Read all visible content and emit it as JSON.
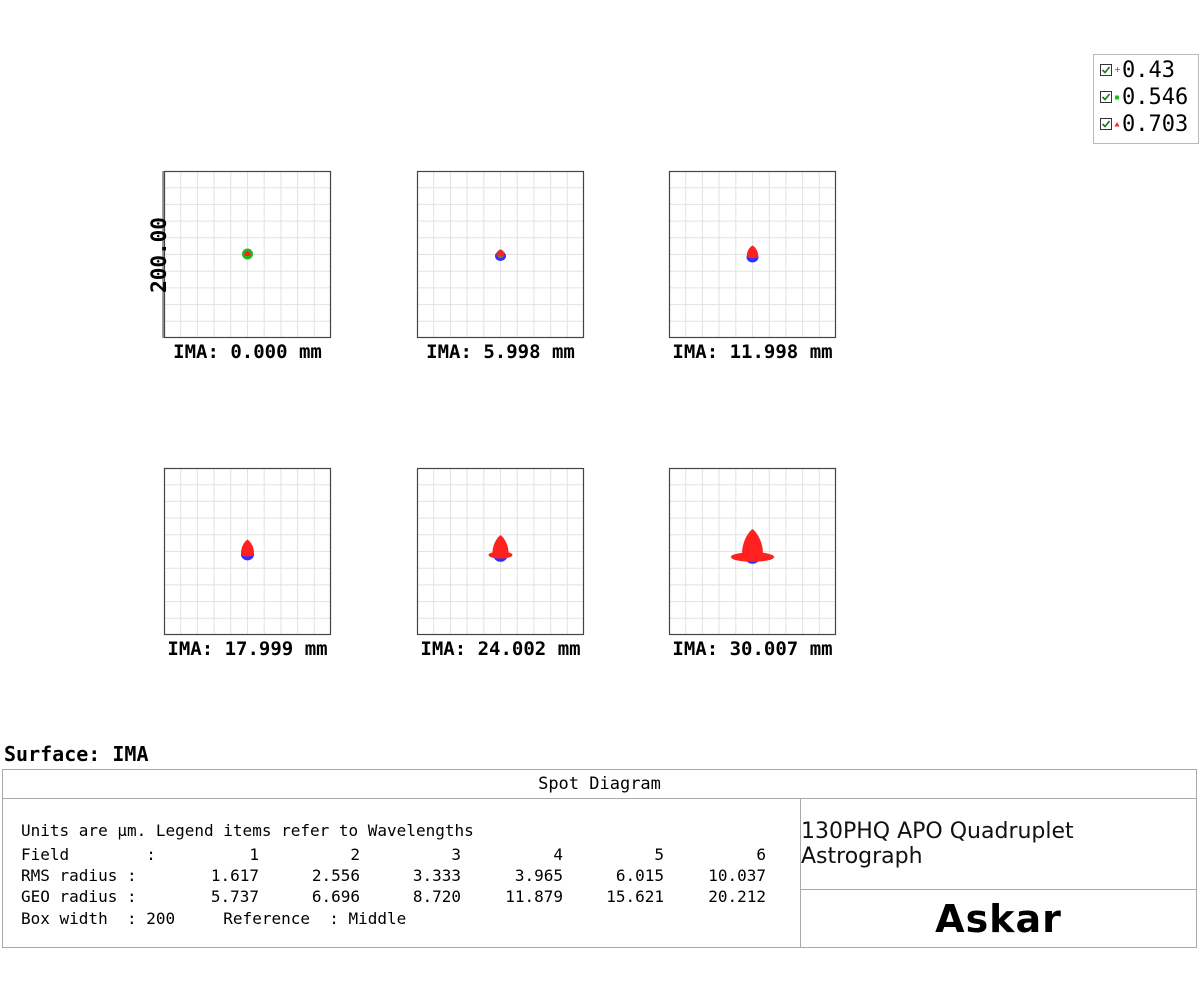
{
  "legend": {
    "items": [
      {
        "label": "0.43",
        "color": "#3030ff"
      },
      {
        "label": "0.546",
        "color": "#22bb22"
      },
      {
        "label": "0.703",
        "color": "#ff2020"
      }
    ]
  },
  "box_scale_label": "200.00",
  "chart_data": {
    "type": "scatter",
    "box_width_um": 200,
    "fields": [
      {
        "label": "IMA: 0.000 mm"
      },
      {
        "label": "IMA: 5.998 mm"
      },
      {
        "label": "IMA: 11.998 mm"
      },
      {
        "label": "IMA: 17.999 mm"
      },
      {
        "label": "IMA: 24.002 mm"
      },
      {
        "label": "IMA: 30.007 mm"
      }
    ]
  },
  "surface_label": "Surface: IMA",
  "table": {
    "title": "Spot Diagram",
    "units_line": "Units are µm. Legend items refer to Wavelengths",
    "field_label": "Field        :",
    "rms_label": "RMS radius :",
    "geo_label": "GEO radius :",
    "field_numbers": [
      "1",
      "2",
      "3",
      "4",
      "5",
      "6"
    ],
    "rms_values": [
      "1.617",
      "2.556",
      "3.333",
      "3.965",
      "6.015",
      "10.037"
    ],
    "geo_values": [
      "5.737",
      "6.696",
      "8.720",
      "11.879",
      "15.621",
      "20.212"
    ],
    "box_width_line": "Box width  : 200     Reference  : Middle",
    "design_name": "130PHQ APO Quadruplet Astrograph",
    "brand": "Askar"
  }
}
